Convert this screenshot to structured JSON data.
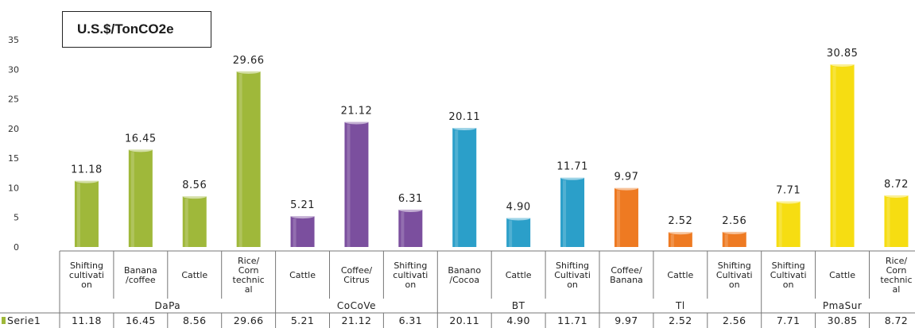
{
  "chart_data": {
    "type": "bar",
    "unit_label": "U.S.$/TonCO2e",
    "ylim": [
      0,
      35
    ],
    "yticks": [
      "0",
      "5",
      "10",
      "15",
      "20",
      "25",
      "30",
      "35"
    ],
    "grid": false,
    "series": [
      {
        "name": "Serie1",
        "values": [
          11.18,
          16.45,
          8.56,
          29.66,
          5.21,
          21.12,
          6.31,
          20.11,
          4.9,
          11.71,
          9.97,
          2.52,
          2.56,
          7.71,
          30.85,
          8.72
        ]
      }
    ],
    "data_labels": [
      "11.18",
      "16.45",
      "8.56",
      "29.66",
      "5.21",
      "21.12",
      "6.31",
      "20.11",
      "4.90",
      "11.71",
      "9.97",
      "2.52",
      "2.56",
      "7.71",
      "30.85",
      "8.72"
    ],
    "table_values": [
      "11.18",
      "16.45",
      "8.56",
      "29.66",
      "5.21",
      "21.12",
      "6.31",
      "20.11",
      "4.90",
      "11.71",
      "9.97",
      "2.52",
      "2.56",
      "7.71",
      "30.85",
      "8.72"
    ],
    "categories": [
      [
        "Shifting",
        "cultivati",
        "on"
      ],
      [
        "Banana",
        "/coffee"
      ],
      [
        "Cattle"
      ],
      [
        "Rice/",
        "Corn",
        "technic",
        "al"
      ],
      [
        "Cattle"
      ],
      [
        "Coffee/",
        "Citrus"
      ],
      [
        "Shifting",
        "cultivati",
        "on"
      ],
      [
        "Banano",
        "/Cocoa"
      ],
      [
        "Cattle"
      ],
      [
        "Shifting",
        "Cultivati",
        "on"
      ],
      [
        "Coffee/",
        "Banana"
      ],
      [
        "Cattle"
      ],
      [
        "Shifting",
        "Cultivati",
        "on"
      ],
      [
        "Shifting",
        "Cultivati",
        "on"
      ],
      [
        "Cattle"
      ],
      [
        "Rice/",
        "Corn",
        "technic",
        "al"
      ]
    ],
    "groups": [
      {
        "name": "DaPa",
        "start": 0,
        "end": 3,
        "color": "#9fb83a"
      },
      {
        "name": "CoCoVe",
        "start": 4,
        "end": 6,
        "color": "#7b4f9e"
      },
      {
        "name": "BT",
        "start": 7,
        "end": 9,
        "color": "#2b9fc9"
      },
      {
        "name": "Tl",
        "start": 10,
        "end": 12,
        "color": "#ee7a22"
      },
      {
        "name": "PmaSur",
        "start": 13,
        "end": 15,
        "color": "#f6dd12"
      }
    ]
  }
}
